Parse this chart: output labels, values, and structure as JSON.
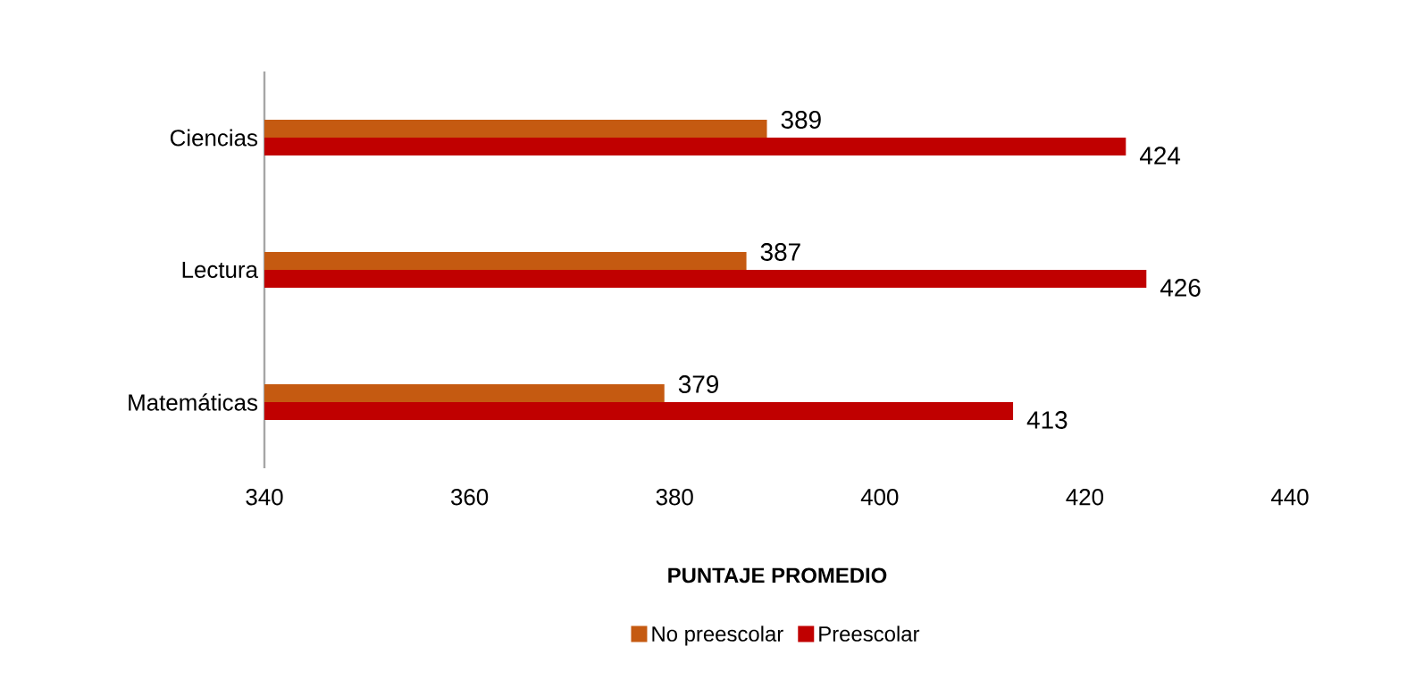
{
  "chart_data": {
    "type": "bar",
    "orientation": "horizontal",
    "categories": [
      "Ciencias",
      "Lectura",
      "Matemáticas"
    ],
    "series": [
      {
        "name": "No preescolar",
        "color": "#c55a11",
        "values": [
          389,
          387,
          379
        ]
      },
      {
        "name": "Preescolar",
        "color": "#c00000",
        "values": [
          424,
          426,
          413
        ]
      }
    ],
    "xlabel": "**PUNTAJE PROMEDIO**",
    "xlim": [
      340,
      440
    ],
    "xticks": [
      340,
      360,
      380,
      400,
      420,
      440
    ],
    "data_labels": true,
    "legend": "bottom",
    "grid": false
  }
}
